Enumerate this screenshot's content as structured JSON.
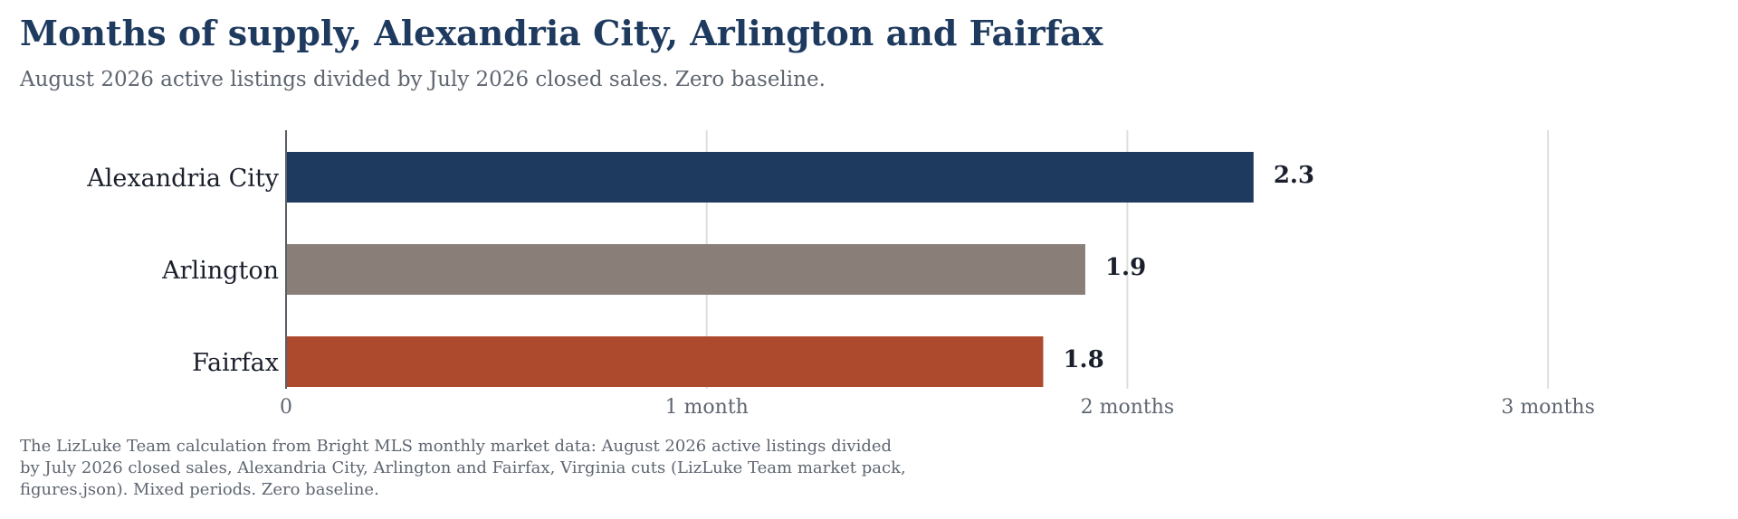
{
  "title": "Months of supply, Alexandria City, Arlington and Fairfax",
  "subtitle": "August 2026 active listings divided by July 2026 closed sales. Zero baseline.",
  "footnote": "The LizLuke Team calculation from Bright MLS monthly market data: August 2026 active listings divided by July 2026 closed sales, Alexandria City, Arlington and Fairfax, Virginia cuts (LizLuke Team market pack, figures.json). Mixed periods. Zero baseline.",
  "chart_data": {
    "type": "bar",
    "orientation": "horizontal",
    "categories": [
      "Alexandria City",
      "Arlington",
      "Fairfax"
    ],
    "values": [
      2.3,
      1.9,
      1.8
    ],
    "value_labels": [
      "2.3",
      "1.9",
      "1.8"
    ],
    "colors": [
      "#1e3a5f",
      "#8a7f78",
      "#ad4a2e"
    ],
    "xlim": [
      0,
      3.4
    ],
    "ticks": [
      0,
      1,
      2,
      3
    ],
    "tick_labels": [
      "0",
      "1 month",
      "2 months",
      "3 months"
    ],
    "xlabel": "",
    "ylabel": "",
    "grid": "vertical",
    "legend": "none"
  }
}
